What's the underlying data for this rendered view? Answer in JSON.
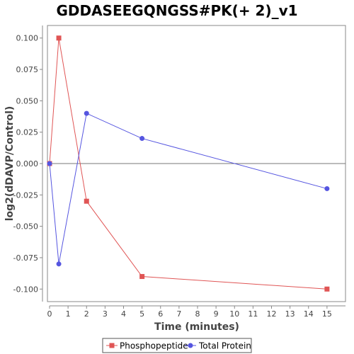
{
  "chart_data": {
    "type": "line",
    "title": "GDDASEEGQNGSS#PK(+ 2)_v1",
    "xlabel": "Time (minutes)",
    "ylabel": "log2(dDAVP/Control)",
    "xlim": [
      0,
      16
    ],
    "ylim": [
      -0.11,
      0.11
    ],
    "x_ticks": [
      0,
      1,
      2,
      3,
      4,
      5,
      6,
      7,
      8,
      9,
      10,
      11,
      12,
      13,
      14,
      15
    ],
    "x_tick_labels": [
      "0",
      "1",
      "2",
      "3",
      "4",
      "5",
      "6",
      "7",
      "8",
      "9",
      "10",
      "11",
      "12",
      "13",
      "14",
      "15"
    ],
    "y_ticks": [
      0.1,
      0.075,
      0.05,
      0.025,
      0.0,
      -0.025,
      -0.05,
      -0.075,
      -0.1
    ],
    "y_tick_labels": [
      "0.100",
      "0.075",
      "0.050",
      "0.025",
      "0.000",
      "-0.025",
      "-0.050",
      "-0.075",
      "-0.100"
    ],
    "grid": false,
    "zero_line": true,
    "legend_position": "bottom",
    "series": [
      {
        "name": "Phosphopeptide",
        "color": "#e05555",
        "marker": "square",
        "x": [
          0,
          0.5,
          2,
          5,
          15
        ],
        "values": [
          0.0,
          0.1,
          -0.03,
          -0.09,
          -0.1
        ]
      },
      {
        "name": "Total Protein",
        "color": "#5555e0",
        "marker": "circle",
        "x": [
          0,
          0.5,
          2,
          5,
          15
        ],
        "values": [
          0.0,
          -0.08,
          0.04,
          0.02,
          -0.02
        ]
      }
    ]
  }
}
